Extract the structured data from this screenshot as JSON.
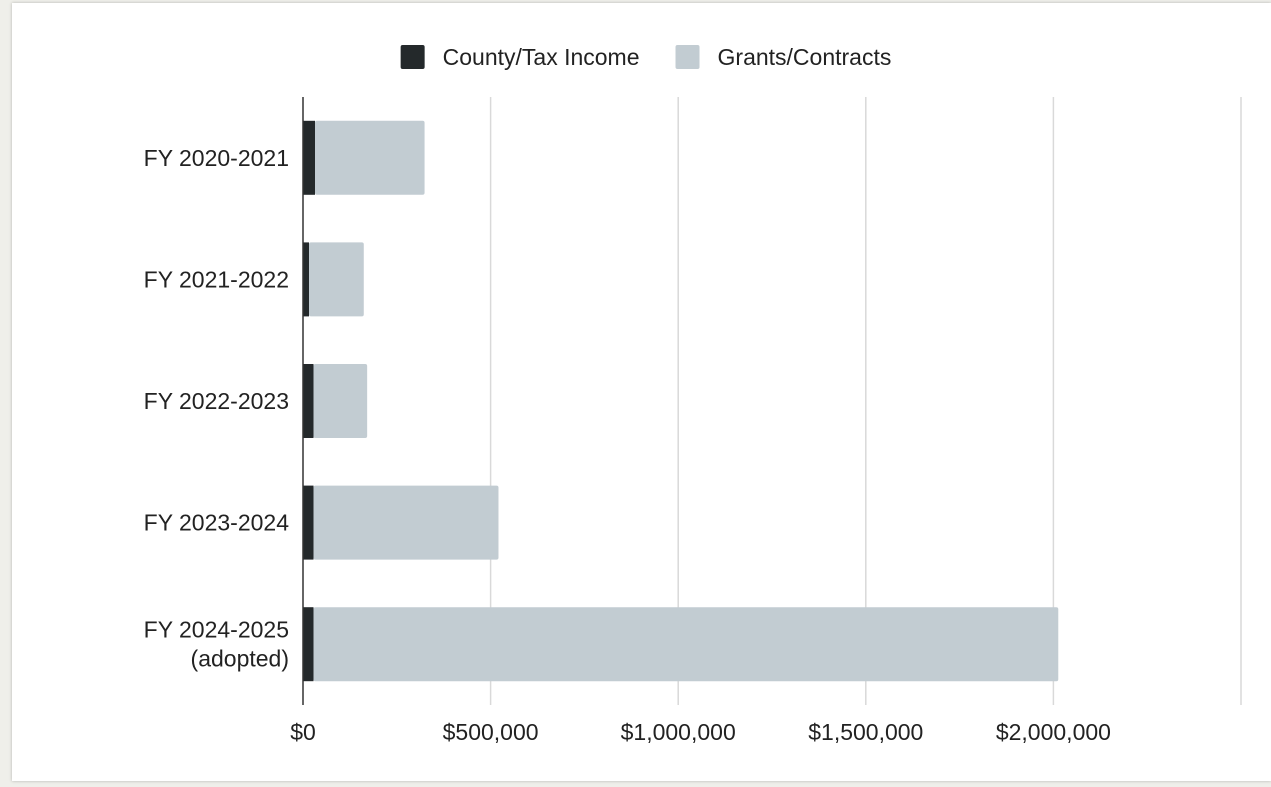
{
  "chart_data": {
    "type": "bar",
    "orientation": "horizontal",
    "stacked": true,
    "categories": [
      [
        "FY 2020-2021"
      ],
      [
        "FY 2021-2022"
      ],
      [
        "FY 2022-2023"
      ],
      [
        "FY 2023-2024"
      ],
      [
        "FY 2024-2025",
        "(adopted)"
      ]
    ],
    "series": [
      {
        "name": "County/Tax Income",
        "color": "#24292b",
        "values": [
          32000,
          16000,
          28000,
          28000,
          28000
        ]
      },
      {
        "name": "Grants/Contracts",
        "color": "#c2ccd2",
        "values": [
          292000,
          146000,
          143000,
          493000,
          1985000
        ]
      }
    ],
    "x_ticks": [
      0,
      500000,
      1000000,
      1500000,
      2000000
    ],
    "x_tick_labels": [
      "$0",
      "$500,000",
      "$1,000,000",
      "$1,500,000",
      "$2,000,000"
    ],
    "xlim": [
      0,
      2500000
    ],
    "grid": true,
    "legend_position": "top-center"
  }
}
